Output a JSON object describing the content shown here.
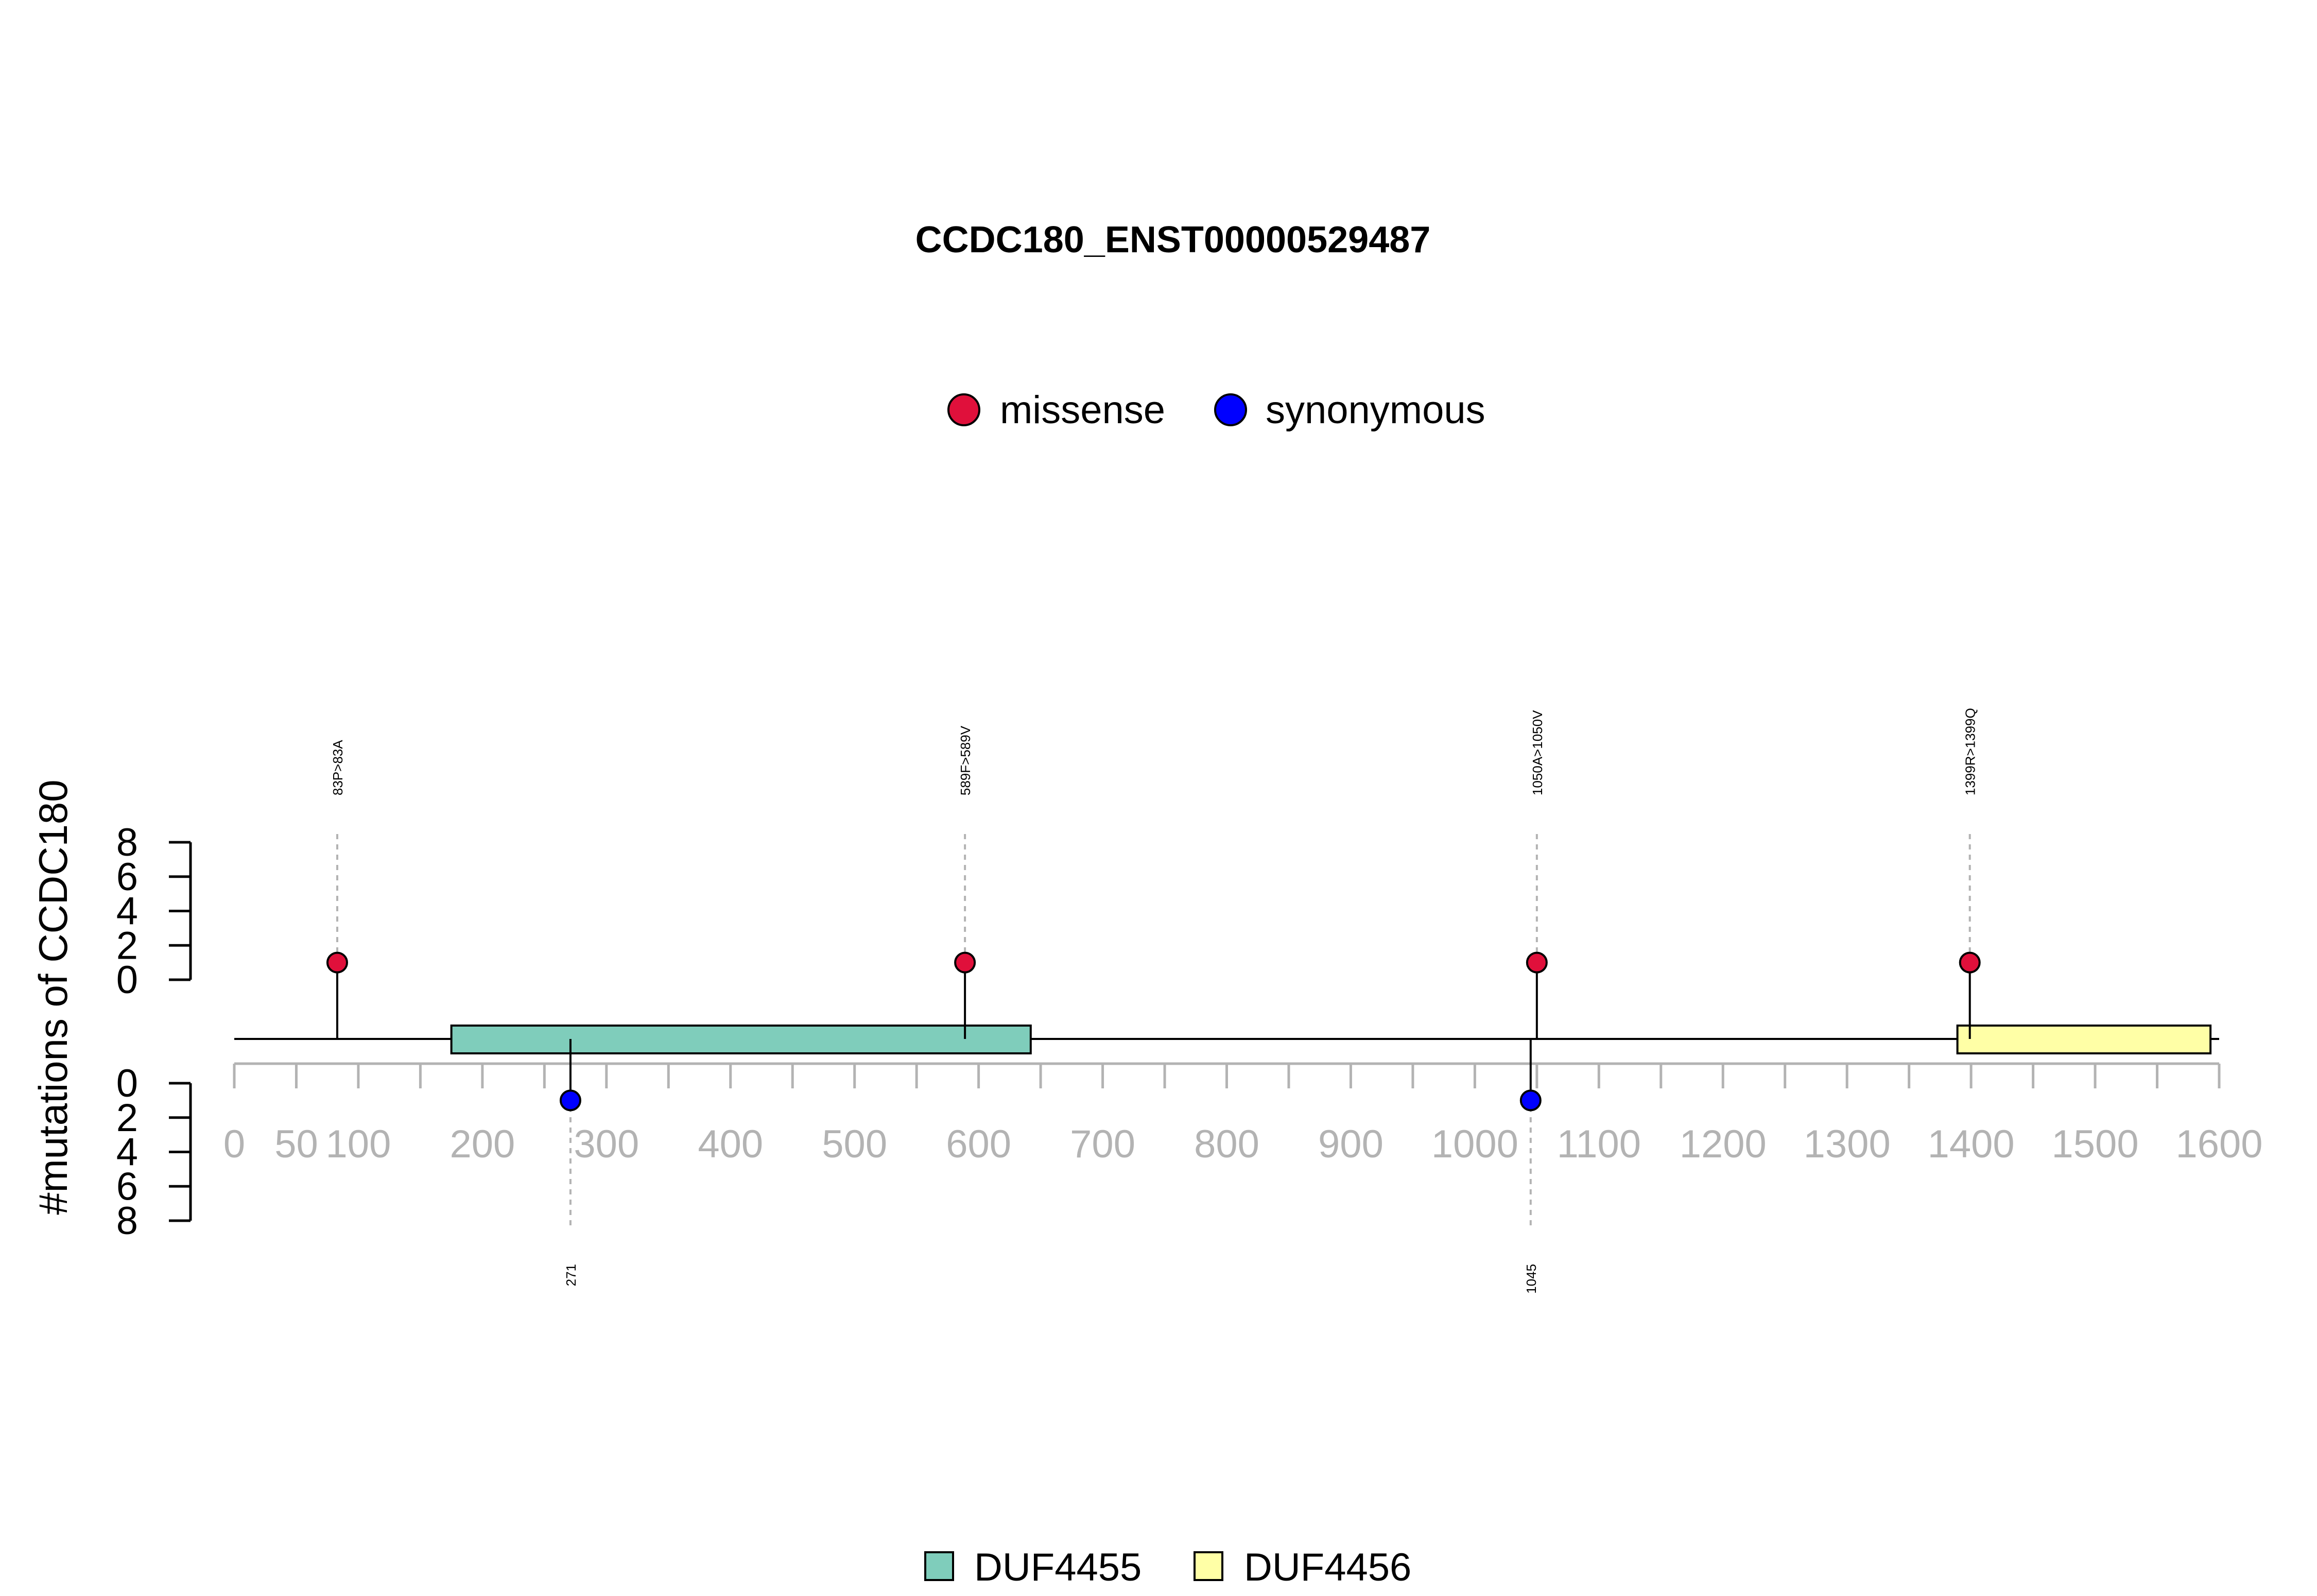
{
  "chart_data": {
    "type": "lollipop",
    "title": "CCDC180_ENST00000529487",
    "ylabel": "#mutations of CCDC180",
    "protein_length": 1600,
    "xlim": [
      0,
      1600
    ],
    "x_ticks": [
      0,
      50,
      100,
      200,
      300,
      400,
      500,
      600,
      700,
      800,
      900,
      1000,
      1100,
      1200,
      1300,
      1400,
      1500,
      1600
    ],
    "x_tick_labels": [
      "0",
      "50",
      "100",
      "200",
      "300",
      "400",
      "500",
      "600",
      "700",
      "800",
      "900",
      "1000",
      "1100",
      "1200",
      "1300",
      "1400",
      "1500",
      "1600"
    ],
    "y_ticks": [
      0,
      2,
      4,
      6,
      8
    ],
    "y_tick_labels": [
      "0",
      "2",
      "4",
      "6",
      "8"
    ],
    "ylim": [
      0,
      8
    ],
    "mutation_legend": [
      {
        "name": "missense",
        "color": "#e0103b"
      },
      {
        "name": "synonymous",
        "color": "#0000ff"
      }
    ],
    "domain_legend": [
      {
        "name": "DUF4455",
        "color": "#7fcdbb"
      },
      {
        "name": "DUF4456",
        "color": "#ffffa6"
      }
    ],
    "domains": [
      {
        "name": "DUF4455",
        "start": 175,
        "end": 642,
        "color": "#7fcdbb"
      },
      {
        "name": "DUF4456",
        "start": 1389,
        "end": 1593,
        "color": "#ffffa6"
      }
    ],
    "mutations_top": [
      {
        "pos": 83,
        "count": 1,
        "type": "missense",
        "label": "83P>83A"
      },
      {
        "pos": 589,
        "count": 1,
        "type": "missense",
        "label": "589F>589V"
      },
      {
        "pos": 1050,
        "count": 1,
        "type": "missense",
        "label": "1050A>1050V"
      },
      {
        "pos": 1399,
        "count": 1,
        "type": "missense",
        "label": "1399R>1399Q"
      }
    ],
    "mutations_bottom": [
      {
        "pos": 271,
        "count": 1,
        "type": "synonymous",
        "label": "271"
      },
      {
        "pos": 1045,
        "count": 1,
        "type": "synonymous",
        "label": "1045"
      }
    ]
  }
}
